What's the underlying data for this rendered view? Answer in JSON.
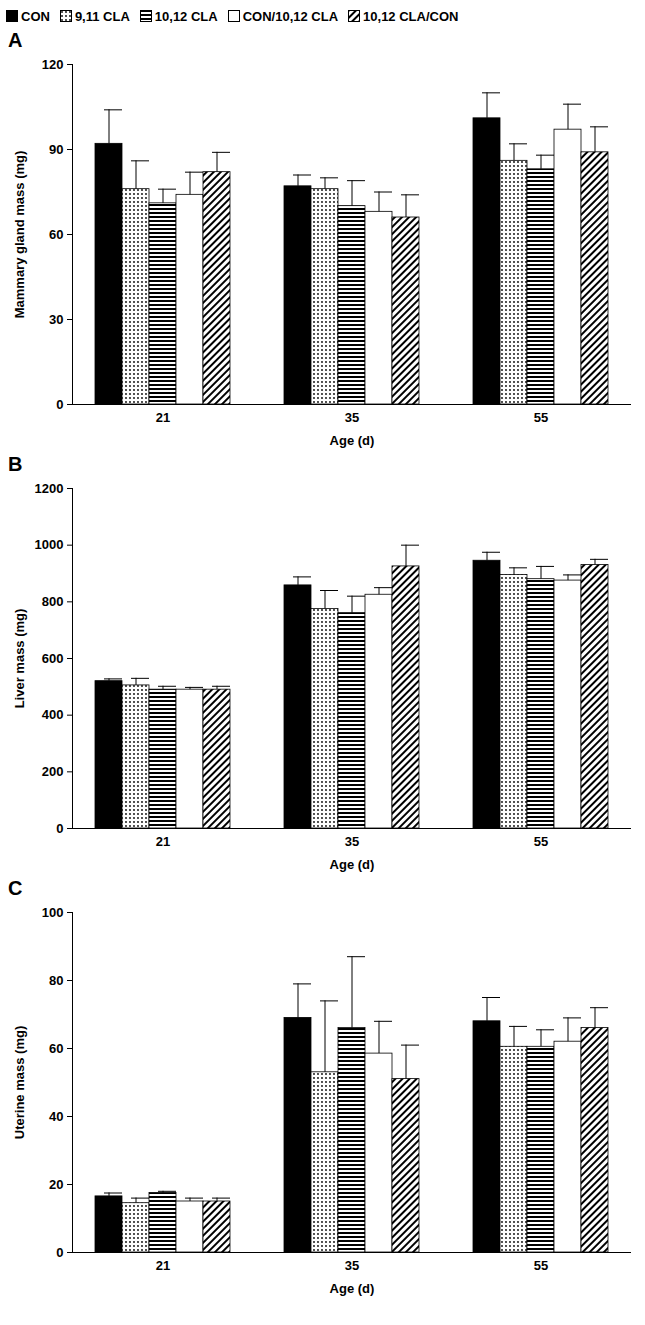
{
  "chart_data": [
    {
      "type": "bar",
      "title": "A",
      "legend": "top",
      "x_label": "Age (d)",
      "y_label": "Mammary gland mass (mg)",
      "categories": [
        "21",
        "35",
        "55"
      ],
      "ylim": [
        0,
        120
      ],
      "yticks": [
        0,
        30,
        60,
        90,
        120
      ],
      "series": [
        {
          "name": "CON",
          "color": "#000000",
          "values": [
            92,
            77,
            101
          ],
          "errors": [
            12,
            4,
            9
          ]
        },
        {
          "name": "9,11 CLA",
          "color": "#000000",
          "values": [
            76,
            76,
            86
          ],
          "errors": [
            10,
            4,
            6
          ]
        },
        {
          "name": "10,12 CLA",
          "color": "#000000",
          "values": [
            71,
            70,
            83
          ],
          "errors": [
            5,
            9,
            5
          ]
        },
        {
          "name": "CON/10,12 CLA",
          "color": "#ffffff",
          "values": [
            74,
            68,
            97
          ],
          "errors": [
            8,
            7,
            9
          ]
        },
        {
          "name": "10,12 CLA/CON",
          "color": "#000000",
          "values": [
            82,
            66,
            89
          ],
          "errors": [
            7,
            8,
            9
          ]
        }
      ]
    },
    {
      "type": "bar",
      "title": "B",
      "x_label": "Age (d)",
      "y_label": "Liver mass (mg)",
      "categories": [
        "21",
        "35",
        "55"
      ],
      "ylim": [
        0,
        1200
      ],
      "yticks": [
        0,
        200,
        400,
        600,
        800,
        1000,
        1200
      ],
      "series": [
        {
          "name": "CON",
          "color": "#000000",
          "values": [
            520,
            858,
            945
          ],
          "errors": [
            8,
            30,
            30
          ]
        },
        {
          "name": "9,11 CLA",
          "color": "#000000",
          "values": [
            505,
            775,
            895
          ],
          "errors": [
            25,
            65,
            25
          ]
        },
        {
          "name": "10,12 CLA",
          "color": "#000000",
          "values": [
            490,
            760,
            880
          ],
          "errors": [
            12,
            60,
            45
          ]
        },
        {
          "name": "CON/10,12 CLA",
          "color": "#ffffff",
          "values": [
            490,
            825,
            875
          ],
          "errors": [
            8,
            25,
            20
          ]
        },
        {
          "name": "10,12 CLA/CON",
          "color": "#000000",
          "values": [
            490,
            925,
            930
          ],
          "errors": [
            12,
            75,
            20
          ]
        }
      ]
    },
    {
      "type": "bar",
      "title": "C",
      "x_label": "Age (d)",
      "y_label": "Uterine mass (mg)",
      "categories": [
        "21",
        "35",
        "55"
      ],
      "ylim": [
        0,
        100
      ],
      "yticks": [
        0,
        20,
        40,
        60,
        80,
        100
      ],
      "series": [
        {
          "name": "CON",
          "color": "#000000",
          "values": [
            16.5,
            69,
            68
          ],
          "errors": [
            1,
            10,
            7
          ]
        },
        {
          "name": "9,11 CLA",
          "color": "#000000",
          "values": [
            14.5,
            53,
            60.5
          ],
          "errors": [
            1.5,
            21,
            6
          ]
        },
        {
          "name": "10,12 CLA",
          "color": "#000000",
          "values": [
            17.5,
            66,
            60.5
          ],
          "errors": [
            0.5,
            21,
            5
          ]
        },
        {
          "name": "CON/10,12 CLA",
          "color": "#ffffff",
          "values": [
            15,
            58.5,
            62
          ],
          "errors": [
            1,
            9.5,
            7
          ]
        },
        {
          "name": "10,12 CLA/CON",
          "color": "#000000",
          "values": [
            15,
            51,
            66
          ],
          "errors": [
            1,
            10,
            6
          ]
        }
      ]
    }
  ]
}
